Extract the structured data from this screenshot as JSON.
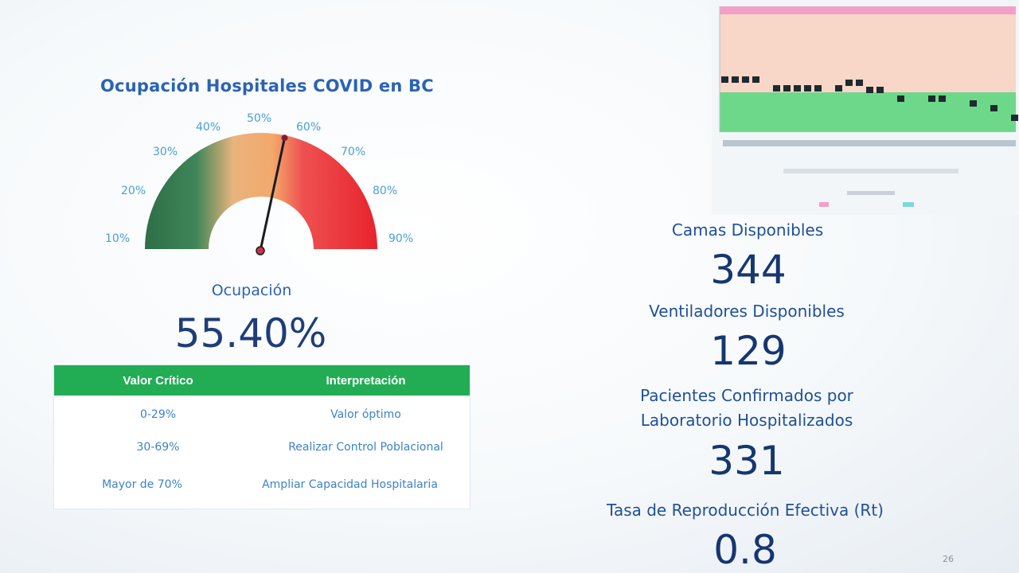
{
  "occupancy_panel": {
    "title": "Ocupación Hospitales COVID en BC",
    "gauge": {
      "tick_labels": [
        "10%",
        "20%",
        "30%",
        "40%",
        "50%",
        "60%",
        "70%",
        "80%",
        "90%"
      ],
      "value": 55.4,
      "min": 10,
      "max": 90
    },
    "occupancy_label": "Ocupación",
    "occupancy_value": "55.40%",
    "critical_table": {
      "headers": [
        "Valor Crítico",
        "Interpretación"
      ],
      "rows": [
        [
          "0-29%",
          "Valor óptimo"
        ],
        [
          "30-69%",
          "Realizar Control Poblacional"
        ],
        [
          "Mayor de 70%",
          "Ampliar Capacidad Hospitalaria"
        ]
      ]
    }
  },
  "stats": {
    "camas_label": "Camas Disponibles",
    "camas_value": "344",
    "ventiladores_label": "Ventiladores Disponibles",
    "ventiladores_value": "129",
    "pacientes_label": "Pacientes Confirmados por Laboratorio Hospitalizados",
    "pacientes_value": "331",
    "rt_label": "Tasa de Reproducción Efectiva  (Rt)",
    "rt_value": "0.8"
  },
  "colors": {
    "gauge_green": "#2e7d4f",
    "gauge_orange": "#f3a86b",
    "gauge_red": "#e8232d",
    "table_header": "#22ad55",
    "chart_red_zone": "#f8d6c8",
    "chart_green_zone": "#6ed88a"
  },
  "page_number": "26"
}
